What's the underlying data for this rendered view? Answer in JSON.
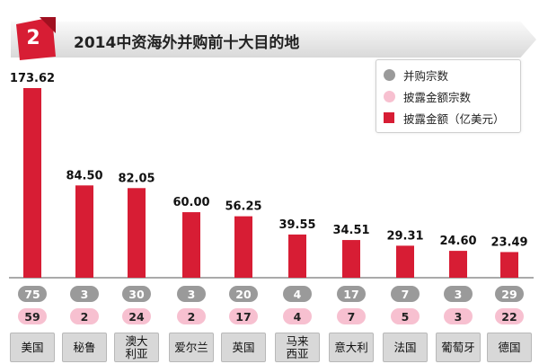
{
  "header": {
    "badge": "2",
    "title": "2014中资海外并购前十大目的地"
  },
  "legend": {
    "deals": "并购宗数",
    "disclosed_deals": "披露金额宗数",
    "disclosed_amount": "披露金额（亿美元）"
  },
  "colors": {
    "bar": "#d71d34",
    "deal_pill": "#9a9a9a",
    "disclosed_pill": "#f7c0d0",
    "header": "#e0e0e0"
  },
  "chart_data": {
    "type": "bar",
    "title": "2014中资海外并购前十大目的地",
    "categories": [
      "美国",
      "秘鲁",
      "澳大利亚",
      "爱尔兰",
      "英国",
      "马来西亚",
      "意大利",
      "法国",
      "葡萄牙",
      "德国"
    ],
    "category_labels": [
      [
        "美国"
      ],
      [
        "秘鲁"
      ],
      [
        "澳大",
        "利亚"
      ],
      [
        "爱尔兰"
      ],
      [
        "英国"
      ],
      [
        "马来",
        "西亚"
      ],
      [
        "意大利"
      ],
      [
        "法国"
      ],
      [
        "葡萄牙"
      ],
      [
        "德国"
      ]
    ],
    "values": [
      173.62,
      84.5,
      82.05,
      60.0,
      56.25,
      39.55,
      34.51,
      29.31,
      24.6,
      23.49
    ],
    "value_labels": [
      "173.62",
      "84.50",
      "82.05",
      "60.00",
      "56.25",
      "39.55",
      "34.51",
      "29.31",
      "24.60",
      "23.49"
    ],
    "deal_counts": [
      75,
      3,
      30,
      3,
      20,
      4,
      17,
      7,
      3,
      29
    ],
    "disclosed_counts": [
      59,
      2,
      24,
      2,
      17,
      4,
      7,
      5,
      3,
      22
    ],
    "ylim": [
      0,
      180
    ],
    "series": [
      {
        "name": "并购宗数",
        "values": [
          75,
          3,
          30,
          3,
          20,
          4,
          17,
          7,
          3,
          29
        ]
      },
      {
        "name": "披露金额宗数",
        "values": [
          59,
          2,
          24,
          2,
          17,
          4,
          7,
          5,
          3,
          22
        ]
      },
      {
        "name": "披露金额（亿美元）",
        "values": [
          173.62,
          84.5,
          82.05,
          60.0,
          56.25,
          39.55,
          34.51,
          29.31,
          24.6,
          23.49
        ]
      }
    ]
  }
}
